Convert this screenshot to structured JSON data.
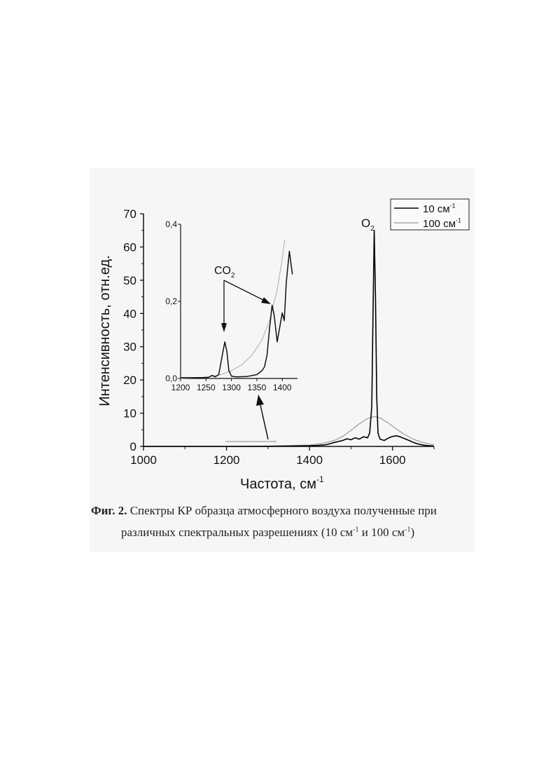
{
  "chart_data": [
    {
      "type": "line",
      "xlabel": "Частота, см",
      "xlabel_sup": "-1",
      "ylabel": "Интенсивность, отн.ед.",
      "xlim": [
        1000,
        1700
      ],
      "ylim": [
        0,
        70
      ],
      "xticks": [
        "1000",
        "1200",
        "1400",
        "1600"
      ],
      "yticks": [
        "0",
        "10",
        "20",
        "30",
        "40",
        "50",
        "60",
        "70"
      ],
      "legend": {
        "position": "top-right",
        "entries": [
          {
            "label": "10 см",
            "sup": "-1",
            "color": "#000000"
          },
          {
            "label": "100 см",
            "sup": "-1",
            "color": "#999999"
          }
        ]
      },
      "annotations": [
        {
          "text": "O",
          "sub": "2",
          "x": 1555,
          "y": 66
        }
      ],
      "series": [
        {
          "name": "10 см-1",
          "x": [
            1000,
            1100,
            1200,
            1300,
            1350,
            1400,
            1420,
            1440,
            1460,
            1480,
            1490,
            1500,
            1510,
            1520,
            1530,
            1540,
            1545,
            1550,
            1553,
            1556,
            1559,
            1562,
            1565,
            1570,
            1580,
            1590,
            1600,
            1610,
            1620,
            1630,
            1640,
            1650,
            1660,
            1670,
            1680,
            1690,
            1700
          ],
          "y": [
            0,
            0,
            0,
            0.05,
            0.1,
            0.2,
            0.3,
            0.5,
            1.2,
            1.8,
            2.3,
            2.0,
            2.6,
            2.2,
            2.9,
            2.6,
            4,
            12,
            40,
            65,
            45,
            15,
            4,
            2.2,
            1.8,
            2.5,
            3.0,
            3.2,
            2.8,
            2.3,
            1.8,
            1.2,
            0.8,
            0.5,
            0.3,
            0.2,
            0.1
          ]
        },
        {
          "name": "100 см-1",
          "x": [
            1000,
            1200,
            1300,
            1400,
            1430,
            1460,
            1480,
            1500,
            1520,
            1540,
            1555,
            1570,
            1590,
            1610,
            1630,
            1650,
            1670,
            1690,
            1700
          ],
          "y": [
            0,
            0.05,
            0.1,
            0.4,
            0.9,
            1.8,
            3.0,
            4.8,
            6.8,
            8.4,
            9.0,
            8.6,
            7.0,
            5.2,
            3.5,
            2.2,
            1.3,
            0.7,
            0.5
          ]
        }
      ]
    },
    {
      "type": "line",
      "inset": true,
      "xlim": [
        1200,
        1430
      ],
      "ylim": [
        0,
        0.4
      ],
      "xticks": [
        "1200",
        "1250",
        "1300",
        "1350",
        "1400"
      ],
      "yticks": [
        "0,0",
        "0,2",
        "0,4"
      ],
      "annotations": [
        {
          "text": "CO",
          "sub": "2"
        }
      ],
      "series": [
        {
          "name": "10 см-1",
          "x": [
            1200,
            1240,
            1255,
            1262,
            1268,
            1275,
            1282,
            1287,
            1291,
            1295,
            1300,
            1310,
            1330,
            1350,
            1360,
            1365,
            1370,
            1375,
            1380,
            1384,
            1390,
            1396,
            1400,
            1404,
            1408,
            1414,
            1420
          ],
          "y": [
            0.002,
            0.002,
            0.003,
            0.008,
            0.004,
            0.01,
            0.06,
            0.095,
            0.07,
            0.02,
            0.006,
            0.004,
            0.005,
            0.01,
            0.02,
            0.03,
            0.06,
            0.13,
            0.19,
            0.165,
            0.095,
            0.14,
            0.17,
            0.15,
            0.25,
            0.33,
            0.27
          ]
        },
        {
          "name": "100 см-1",
          "x": [
            1200,
            1250,
            1280,
            1300,
            1320,
            1340,
            1360,
            1375,
            1390,
            1400,
            1405
          ],
          "y": [
            0.0,
            0.003,
            0.01,
            0.02,
            0.035,
            0.06,
            0.1,
            0.15,
            0.23,
            0.31,
            0.36
          ]
        }
      ]
    }
  ],
  "caption": {
    "line1_bold": "Фиг. 2.",
    "line1_rest": " Спектры КР образца атмосферного воздуха полученные при",
    "line2_a": "различных спектральных разрешениях (10 см",
    "line2_sup1": "-1",
    "line2_b": " и 100 см",
    "line2_sup2": "-1",
    "line2_c": ")"
  }
}
